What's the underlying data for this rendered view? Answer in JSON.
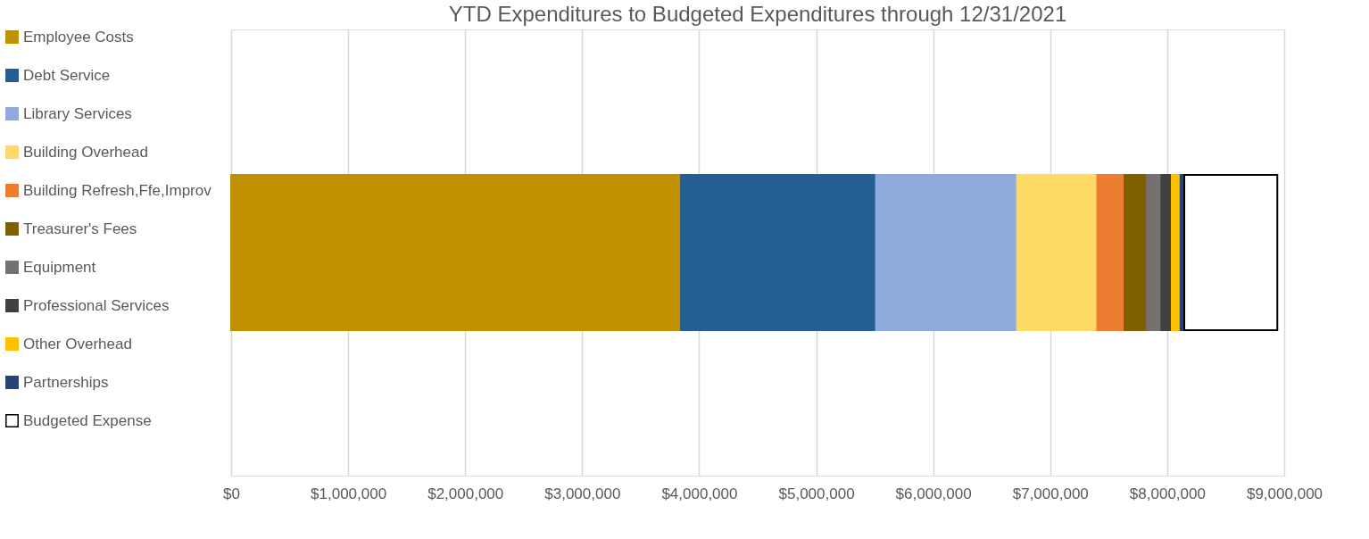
{
  "chart_data": {
    "type": "bar",
    "orientation": "horizontal",
    "stacked": true,
    "title": "YTD Expenditures to Budgeted Expenditures through 12/31/2021",
    "categories": [
      null
    ],
    "series": [
      {
        "name": "Employee Costs",
        "color": "#bf9000",
        "values": [
          3845000
        ]
      },
      {
        "name": "Debt Service",
        "color": "#255e91",
        "values": [
          1666000
        ]
      },
      {
        "name": "Library Services",
        "color": "#8faadc",
        "values": [
          1206000
        ]
      },
      {
        "name": "Building Overhead",
        "color": "#ffd966",
        "values": [
          685000
        ]
      },
      {
        "name": "Building Refresh,Ffe,Improv",
        "color": "#ed7d31",
        "values": [
          233000
        ]
      },
      {
        "name": "Treasurer's Fees",
        "color": "#7f6000",
        "values": [
          192000
        ]
      },
      {
        "name": "Equipment",
        "color": "#767171",
        "values": [
          123000
        ]
      },
      {
        "name": "Professional Services",
        "color": "#404040",
        "values": [
          89000
        ]
      },
      {
        "name": "Other Overhead",
        "color": "#ffc000",
        "values": [
          75000
        ]
      },
      {
        "name": "Partnerships",
        "color": "#264478",
        "values": [
          32000
        ]
      },
      {
        "name": "Budgeted Expense",
        "color": "#ffffff",
        "values": [
          795000
        ]
      }
    ],
    "xlim": [
      0,
      9000000
    ],
    "xticks": [
      {
        "value": 0,
        "label": "$0"
      },
      {
        "value": 1000000,
        "label": "$1,000,000"
      },
      {
        "value": 2000000,
        "label": "$2,000,000"
      },
      {
        "value": 3000000,
        "label": "$3,000,000"
      },
      {
        "value": 4000000,
        "label": "$4,000,000"
      },
      {
        "value": 5000000,
        "label": "$5,000,000"
      },
      {
        "value": 6000000,
        "label": "$6,000,000"
      },
      {
        "value": 7000000,
        "label": "$7,000,000"
      },
      {
        "value": 8000000,
        "label": "$8,000,000"
      },
      {
        "value": 9000000,
        "label": "$9,000,000"
      }
    ],
    "grid": "x",
    "legend": "left"
  }
}
